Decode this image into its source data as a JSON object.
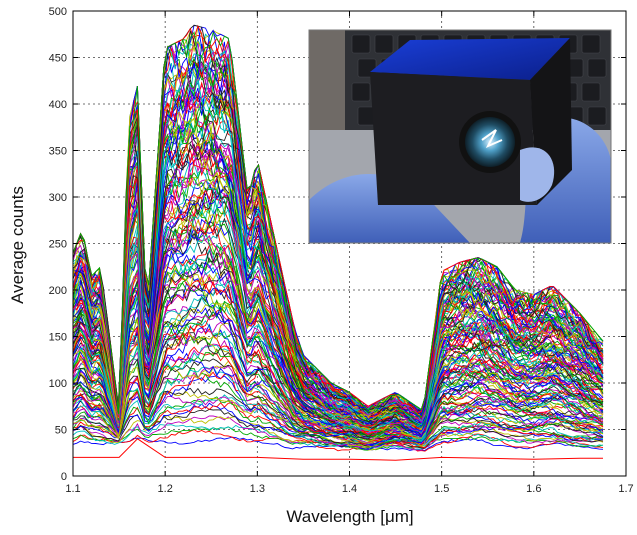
{
  "chart_data": {
    "type": "line",
    "title": "",
    "xlabel": "Wavelength [μm]",
    "ylabel": "Average counts",
    "xlim": [
      1.1,
      1.7
    ],
    "ylim": [
      0,
      500
    ],
    "xticks": [
      1.1,
      1.2,
      1.3,
      1.4,
      1.5,
      1.6,
      1.7
    ],
    "xtick_labels": [
      "1.1",
      "1.2",
      "1.3",
      "1.4",
      "1.5",
      "1.6",
      "1.7"
    ],
    "yticks": [
      0,
      50,
      100,
      150,
      200,
      250,
      300,
      350,
      400,
      450,
      500
    ],
    "ytick_labels": [
      "0",
      "50",
      "100",
      "150",
      "200",
      "250",
      "300",
      "350",
      "400",
      "450",
      "500"
    ],
    "grid": true,
    "legend": "none",
    "series_count_approx": 300,
    "x_data_range": [
      1.1,
      1.675
    ],
    "envelope": {
      "x": [
        1.1,
        1.11,
        1.12,
        1.13,
        1.15,
        1.16,
        1.17,
        1.18,
        1.2,
        1.22,
        1.23,
        1.25,
        1.27,
        1.29,
        1.3,
        1.32,
        1.34,
        1.35,
        1.38,
        1.4,
        1.42,
        1.45,
        1.48,
        1.5,
        1.52,
        1.54,
        1.56,
        1.58,
        1.6,
        1.62,
        1.65,
        1.675
      ],
      "max": [
        240,
        265,
        215,
        225,
        70,
        380,
        420,
        175,
        460,
        470,
        485,
        480,
        470,
        300,
        340,
        250,
        160,
        130,
        100,
        90,
        75,
        90,
        70,
        220,
        230,
        235,
        225,
        200,
        195,
        205,
        175,
        145
      ],
      "min": [
        35,
        40,
        35,
        33,
        35,
        33,
        40,
        38,
        38,
        38,
        38,
        38,
        38,
        38,
        36,
        36,
        32,
        34,
        30,
        30,
        28,
        32,
        28,
        35,
        36,
        38,
        35,
        32,
        32,
        33,
        30,
        30
      ]
    },
    "dark_reference_curve": {
      "x": [
        1.1,
        1.15,
        1.17,
        1.2,
        1.25,
        1.3,
        1.35,
        1.4,
        1.45,
        1.5,
        1.55,
        1.6,
        1.65,
        1.675
      ],
      "y": [
        20,
        20,
        40,
        20,
        20,
        20,
        18,
        18,
        17,
        20,
        19,
        18,
        19,
        19
      ]
    },
    "inset": {
      "content": "photo of a black cube-shaped optical sensor with a lens, held in a blue-gloved hand"
    },
    "colors": {
      "palette": [
        "#0000ff",
        "#ff0000",
        "#00aa00",
        "#00bfbf",
        "#bf00bf",
        "#bfbf00",
        "#202020"
      ],
      "dark_curve": "#ff0000",
      "grid": "#444444"
    }
  }
}
